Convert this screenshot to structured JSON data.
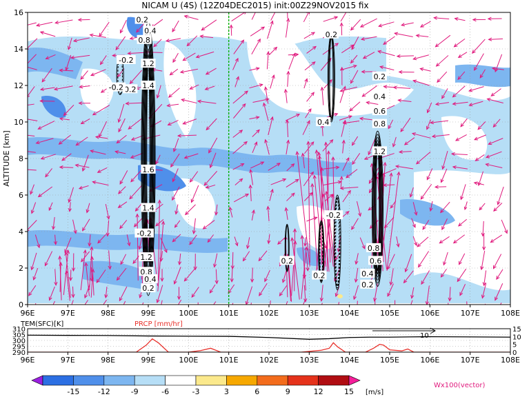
{
  "chart_data": [
    {
      "type": "heatmap",
      "title": "NICAM U (4S) (12Z04DEC2015) init:00Z29NOV2015 fix",
      "ylabel": "ALTITUDE [km]",
      "xlabel": "",
      "x_ticks": [
        "96E",
        "97E",
        "98E",
        "99E",
        "100E",
        "101E",
        "102E",
        "103E",
        "104E",
        "105E",
        "106E",
        "107E",
        "108E"
      ],
      "y_ticks": [
        "0",
        "2",
        "4",
        "6",
        "8",
        "10",
        "12",
        "14",
        "16"
      ],
      "xlim": [
        96,
        108
      ],
      "ylim": [
        0,
        16
      ],
      "grid": true,
      "reference_line_x": 101,
      "contour_labels": [
        {
          "text": "0.2",
          "x": 98.55,
          "y": 11.8
        },
        {
          "text": "-0.2",
          "x": 98.2,
          "y": 11.9
        },
        {
          "text": "-0.2",
          "x": 98.45,
          "y": 13.4
        },
        {
          "text": "0.2",
          "x": 98.85,
          "y": 15.6
        },
        {
          "text": "0.4",
          "x": 99.05,
          "y": 15.0
        },
        {
          "text": "0.8",
          "x": 98.9,
          "y": 14.5
        },
        {
          "text": "1.2",
          "x": 99.0,
          "y": 13.2
        },
        {
          "text": "1.4",
          "x": 99.0,
          "y": 12.0
        },
        {
          "text": "1.6",
          "x": 99.0,
          "y": 7.4
        },
        {
          "text": "1.4",
          "x": 99.0,
          "y": 5.3
        },
        {
          "text": "-0.2",
          "x": 98.9,
          "y": 3.9
        },
        {
          "text": "1.2",
          "x": 98.95,
          "y": 2.6
        },
        {
          "text": "0.8",
          "x": 98.95,
          "y": 1.8
        },
        {
          "text": "0.4",
          "x": 99.05,
          "y": 1.4
        },
        {
          "text": "0.2",
          "x": 99.0,
          "y": 0.9
        },
        {
          "text": "0.2",
          "x": 103.55,
          "y": 14.8
        },
        {
          "text": "0.4",
          "x": 103.35,
          "y": 10.0
        },
        {
          "text": "-0.2",
          "x": 103.6,
          "y": 4.9
        },
        {
          "text": "0.2",
          "x": 102.45,
          "y": 2.4
        },
        {
          "text": "0.2",
          "x": 103.25,
          "y": 1.6
        },
        {
          "text": "0.2",
          "x": 104.75,
          "y": 12.5
        },
        {
          "text": "0.4",
          "x": 104.75,
          "y": 11.4
        },
        {
          "text": "0.6",
          "x": 104.75,
          "y": 10.6
        },
        {
          "text": "0.8",
          "x": 104.75,
          "y": 9.9
        },
        {
          "text": "1.2",
          "x": 104.75,
          "y": 8.4
        },
        {
          "text": "0.8",
          "x": 104.6,
          "y": 3.1
        },
        {
          "text": "0.6",
          "x": 104.65,
          "y": 2.4
        },
        {
          "text": "0.4",
          "x": 104.45,
          "y": 1.7
        },
        {
          "text": "0.2",
          "x": 104.45,
          "y": 1.1
        }
      ]
    },
    {
      "type": "line",
      "xlim": [
        96,
        108
      ],
      "x_ticks": [
        "96E",
        "97E",
        "98E",
        "99E",
        "100E",
        "101E",
        "102E",
        "103E",
        "104E",
        "105E",
        "106E",
        "107E",
        "108E"
      ],
      "left_axis": {
        "label": "TEM(SFC)[K]",
        "ticks": [
          "310",
          "305",
          "300",
          "295",
          "290"
        ],
        "range": [
          290,
          310
        ]
      },
      "right_axis": {
        "label": "PRCP [mm/hr]",
        "ticks": [
          "15",
          "10",
          "5",
          "0"
        ],
        "range": [
          0,
          15
        ]
      },
      "vector_label": "10",
      "series": [
        {
          "name": "TEM(SFC)[K]",
          "color": "#000000",
          "axis": "left",
          "x": [
            96,
            97,
            98,
            99,
            100,
            101,
            102,
            103,
            103.5,
            104,
            104.5,
            105,
            105.5,
            106,
            107,
            108
          ],
          "y": [
            304.5,
            304.3,
            304.2,
            303.8,
            303.6,
            303.5,
            302.5,
            301.0,
            301.5,
            302.5,
            302.8,
            302.8,
            303.0,
            303.2,
            303.0,
            302.8
          ]
        },
        {
          "name": "PRCP [mm/hr]",
          "color": "#e8302a",
          "axis": "right",
          "x": [
            96,
            98.7,
            98.95,
            99.1,
            99.25,
            99.5,
            100,
            100.3,
            100.55,
            100.8,
            102.8,
            103.3,
            103.5,
            103.6,
            103.7,
            103.9,
            104.4,
            104.6,
            104.75,
            104.85,
            105.0,
            105.3,
            105.45,
            105.6,
            108
          ],
          "y": [
            0,
            0,
            4.5,
            8.5,
            6.0,
            0,
            0,
            1.0,
            2.5,
            0,
            0,
            1.2,
            2.5,
            6.0,
            3.5,
            0,
            0,
            2.5,
            5.0,
            4.5,
            1.5,
            0.8,
            2.0,
            0,
            0
          ]
        }
      ]
    }
  ],
  "colorbar": {
    "ticks": [
      "-15",
      "-12",
      "-9",
      "-6",
      "-3",
      "3",
      "6",
      "9",
      "12",
      "15"
    ],
    "unit": "[m/s]",
    "colors": [
      "#9a1fe0",
      "#2c6fe3",
      "#4f8fea",
      "#7db6f0",
      "#b6def6",
      "#ffffff",
      "#fbe98c",
      "#f6a800",
      "#f36c1c",
      "#e5321b",
      "#b00d12",
      "#f51e9a"
    ],
    "vector_label": "Wx100(vector)"
  },
  "palette": {
    "lightblue": "#b6def6",
    "midblue": "#7db6f0",
    "blue": "#4f8fea",
    "arrow": "#e0187c",
    "reference": "#00b000"
  }
}
